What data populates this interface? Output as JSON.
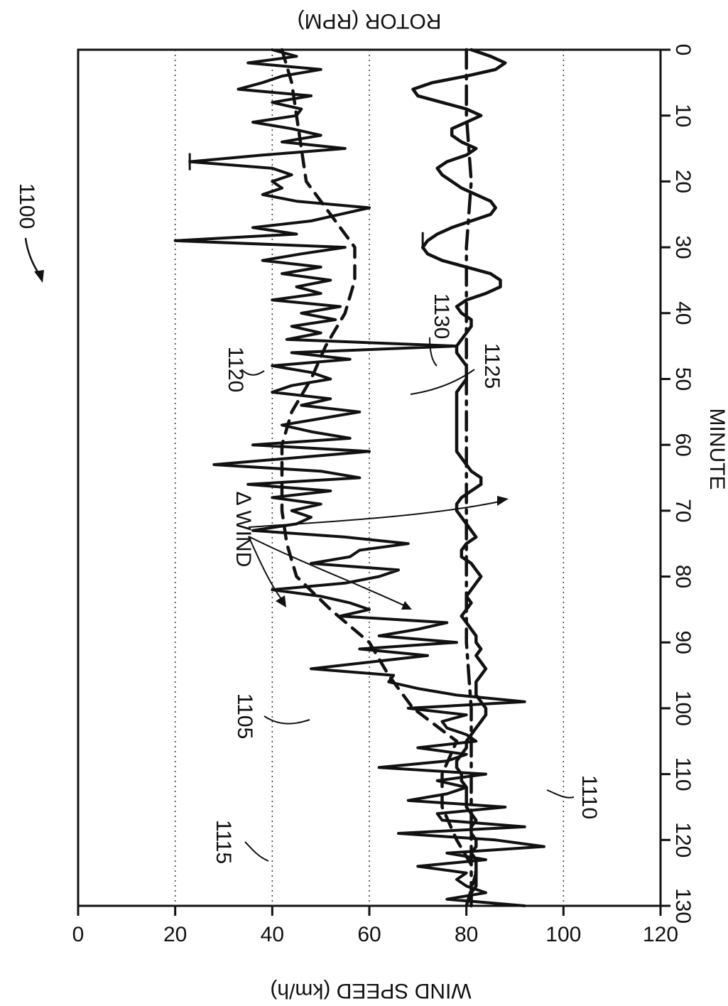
{
  "figure_ref": "1100",
  "chart_data": {
    "type": "line",
    "orientation": "rotated 90 degrees clockwise",
    "xlabel": "MINUTE",
    "ylabel_left": "WIND SPEED (km/h)",
    "ylabel_right": "ROTOR (RPM)",
    "xlim": [
      0,
      130
    ],
    "ylim": [
      0,
      120
    ],
    "x_ticks": [
      "0",
      "10",
      "20",
      "30",
      "40",
      "50",
      "60",
      "70",
      "80",
      "90",
      "100",
      "110",
      "120",
      "130"
    ],
    "y_ticks": [
      "0",
      "20",
      "40",
      "60",
      "80",
      "100",
      "120"
    ],
    "grid": "horizontal dotted at 20, 40, 60, 100",
    "annotation": "Δ WIND",
    "ref_labels": [
      "1105",
      "1110",
      "1115",
      "1120",
      "1125",
      "1130"
    ],
    "series": [
      {
        "ref": "1115",
        "style": "solid thick smooth",
        "x": [
          0,
          1,
          2,
          3,
          4,
          5,
          6,
          7,
          8,
          9,
          10,
          11,
          12,
          13,
          14,
          15,
          16,
          17,
          18,
          19,
          20,
          21,
          22,
          23,
          24,
          25,
          26,
          27,
          28,
          29,
          30,
          31,
          32,
          33,
          34,
          35,
          36,
          37,
          38,
          39,
          40,
          41,
          42,
          43,
          44,
          45,
          46,
          47,
          48,
          49,
          50,
          51,
          52,
          53,
          54,
          55,
          56,
          57,
          58,
          59,
          60,
          61,
          62,
          63,
          64,
          65,
          66,
          67,
          68,
          69,
          70,
          71,
          72,
          73,
          74,
          75,
          76,
          77,
          78,
          79,
          80,
          81,
          82,
          83,
          84,
          85,
          86,
          87,
          88,
          89,
          90,
          91,
          92,
          93,
          94,
          95,
          96,
          97,
          98,
          99,
          100,
          101,
          102,
          103,
          104,
          105,
          106,
          107,
          108,
          109,
          110,
          111,
          112,
          113,
          114,
          115,
          116,
          117,
          118,
          119,
          120,
          121,
          122,
          123,
          124,
          125,
          126,
          127,
          128,
          129,
          130
        ],
        "y": [
          81,
          85,
          88,
          86,
          80,
          73,
          69,
          70,
          75,
          80,
          83,
          80,
          77,
          77,
          79,
          82,
          80,
          76,
          74,
          75,
          77,
          79,
          82,
          85,
          86,
          85,
          81,
          77,
          74,
          72,
          71,
          72,
          75,
          80,
          85,
          87,
          87,
          84,
          80,
          78,
          79,
          81,
          81,
          80,
          79,
          78,
          78,
          79,
          80,
          80,
          80,
          79,
          78,
          78,
          78,
          78,
          78,
          78,
          78,
          78,
          78,
          78,
          79,
          80,
          81,
          83,
          83,
          81,
          79,
          78,
          78,
          79,
          80,
          81,
          82,
          80,
          79,
          79,
          81,
          82,
          83,
          82,
          81,
          80,
          81,
          80,
          79,
          80,
          81,
          82,
          82,
          83,
          82,
          83,
          84,
          83,
          82,
          82,
          82,
          83,
          84,
          84,
          83,
          82,
          81,
          80,
          80,
          79,
          78,
          78,
          79,
          79,
          80,
          80,
          80,
          80,
          81,
          82,
          81,
          81,
          82,
          82,
          81,
          82,
          82,
          82,
          82,
          82,
          81,
          81,
          81
        ]
      },
      {
        "ref": "1120",
        "style": "dash-dot",
        "x": [
          0,
          10,
          20,
          30,
          40,
          50,
          60,
          70,
          80,
          90,
          100,
          110,
          120,
          130
        ],
        "y": [
          80,
          80,
          81,
          80,
          80,
          80,
          80,
          80,
          80,
          80,
          81,
          81,
          81,
          81
        ]
      },
      {
        "ref": "1130",
        "style": "solid jagged",
        "x": [
          0,
          1,
          2,
          3,
          4,
          5,
          6,
          7,
          8,
          9,
          10,
          11,
          12,
          13,
          14,
          15,
          16,
          17,
          18,
          19,
          20,
          21,
          22,
          23,
          24,
          25,
          26,
          27,
          28,
          29,
          30,
          31,
          32,
          33,
          34,
          35,
          36,
          37,
          38,
          39,
          40,
          41,
          42,
          43,
          44,
          45,
          46,
          47,
          48,
          49,
          50,
          51,
          52,
          53,
          54,
          55,
          56,
          57,
          58,
          59,
          60,
          61,
          62,
          63,
          64,
          65,
          66,
          67,
          68,
          69,
          70,
          71,
          72,
          73,
          74,
          75,
          76,
          77,
          78,
          79,
          80,
          81,
          82,
          83,
          84,
          85,
          86,
          87,
          88,
          89,
          90,
          91,
          92,
          93,
          94,
          95,
          96,
          97,
          98,
          99,
          100,
          101,
          102,
          103,
          104,
          105,
          106,
          107,
          108,
          109,
          110,
          111,
          112,
          113,
          114,
          115,
          116,
          117,
          118,
          119,
          120,
          121,
          122,
          123,
          124,
          125,
          126,
          127,
          128,
          129,
          130
        ],
        "y": [
          40,
          45,
          35,
          50,
          42,
          38,
          33,
          48,
          40,
          46,
          45,
          36,
          44,
          50,
          42,
          55,
          38,
          23,
          40,
          44,
          40,
          42,
          38,
          45,
          60,
          54,
          48,
          36,
          45,
          20,
          55,
          46,
          38,
          50,
          42,
          52,
          45,
          50,
          40,
          54,
          46,
          53,
          44,
          50,
          43,
          78,
          44,
          56,
          40,
          48,
          52,
          44,
          40,
          52,
          46,
          58,
          50,
          42,
          48,
          56,
          36,
          60,
          44,
          28,
          50,
          58,
          35,
          52,
          40,
          50,
          44,
          48,
          45,
          36,
          55,
          68,
          58,
          56,
          48,
          66,
          62,
          55,
          40,
          50,
          56,
          60,
          54,
          76,
          70,
          62,
          78,
          58,
          72,
          60,
          48,
          65,
          64,
          70,
          78,
          92,
          68,
          80,
          75,
          76,
          80,
          82,
          70,
          80,
          76,
          62,
          84,
          74,
          80,
          76,
          68,
          88,
          74,
          75,
          92,
          66,
          86,
          96,
          76,
          84,
          70,
          80,
          78,
          80,
          84,
          76,
          92
        ]
      },
      {
        "ref": "1125",
        "style": "dashed",
        "x": [
          0,
          5,
          10,
          15,
          20,
          25,
          30,
          35,
          40,
          45,
          50,
          55,
          60,
          65,
          70,
          75,
          80,
          85,
          90,
          95,
          100,
          105,
          110,
          115,
          120,
          125,
          130
        ],
        "y": [
          42,
          44,
          45,
          46,
          47,
          52,
          57,
          57,
          55,
          51,
          48,
          44,
          42,
          42,
          42,
          43,
          45,
          52,
          60,
          64,
          69,
          78,
          75,
          75,
          78,
          82,
          80
        ]
      }
    ]
  }
}
